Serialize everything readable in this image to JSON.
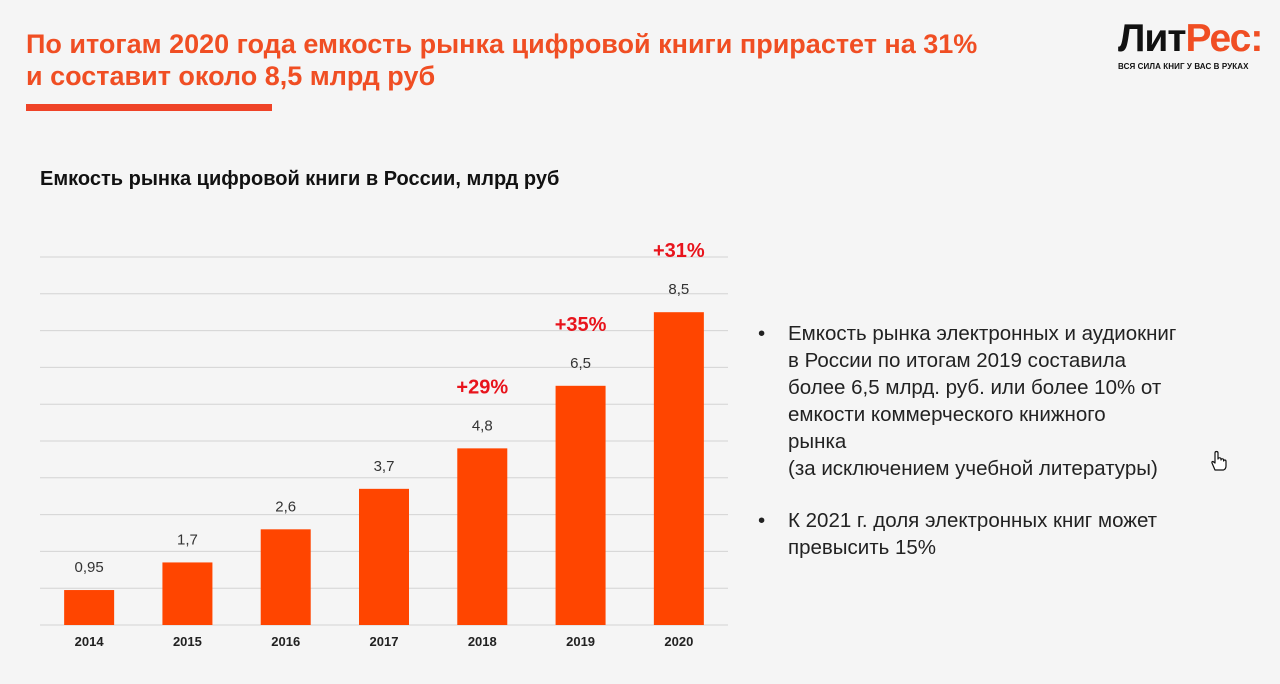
{
  "slide": {
    "title_lines": [
      "По итогам 2020 года емкость рынка цифровой книги прирастет на 31%",
      "и составит около 8,5 млрд руб"
    ]
  },
  "logo": {
    "word_dark": "Лит",
    "word_red": "Рес:",
    "tagline": "ВСЯ СИЛА КНИГ У ВАС В РУКАХ"
  },
  "colors": {
    "accent": "#f04e23",
    "bar": "#ff4500",
    "growth_label": "#e8141c",
    "gridline": "#d4d4d4",
    "text": "#222222"
  },
  "chart_data": {
    "type": "bar",
    "title": "Емкость рынка цифровой книги в России, млрд руб",
    "categories": [
      "2014",
      "2015",
      "2016",
      "2017",
      "2018",
      "2019",
      "2020"
    ],
    "values": [
      0.95,
      1.7,
      2.6,
      3.7,
      4.8,
      6.5,
      8.5
    ],
    "value_labels": [
      "0,95",
      "1,7",
      "2,6",
      "3,7",
      "4,8",
      "6,5",
      "8,5"
    ],
    "growth_labels": [
      "",
      "",
      "",
      "",
      "+29%",
      "+35%",
      "+31%"
    ],
    "ylim": [
      0,
      10
    ],
    "gridlines": true,
    "y_axis_labels_shown": false
  },
  "bullets": [
    "Емкость рынка электронных и аудиокниг\nв России по итогам 2019 составила\nболее 6,5 млрд. руб. или более 10% от\nемкости коммерческого книжного\nрынка\n(за исключением учебной литературы)",
    "К 2021 г. доля электронных книг может\nпревысить 15%"
  ],
  "bullet_glyph": "•",
  "icons": {
    "cursor": "hand-pointer-icon"
  }
}
